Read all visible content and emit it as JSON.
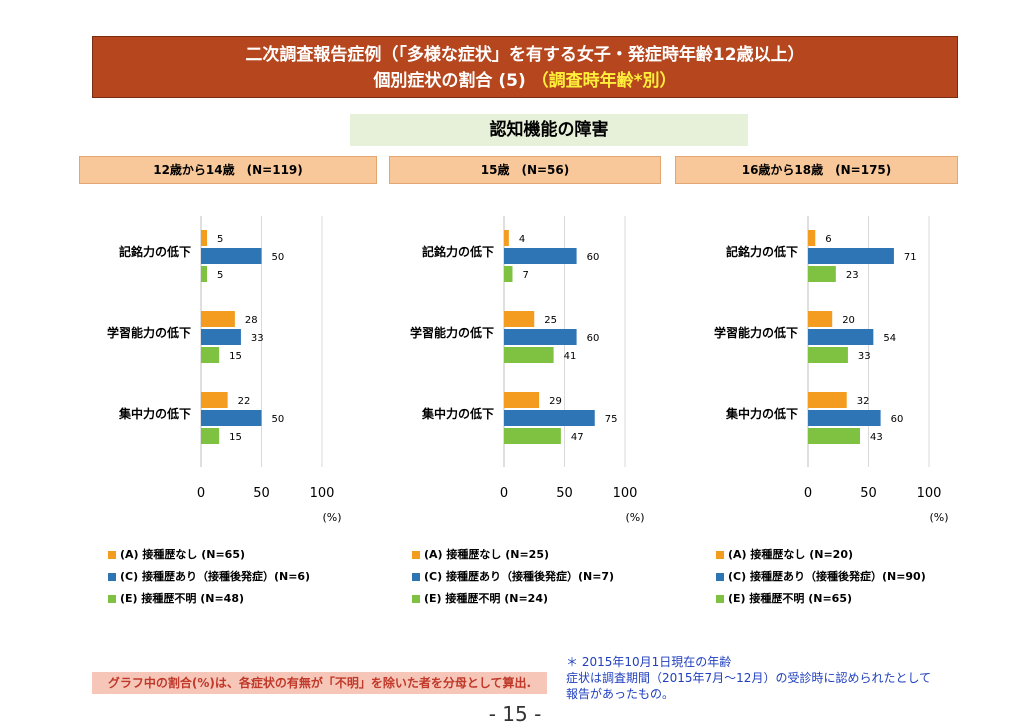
{
  "title_line1": "二次調査報告症例（「多様な症状」を有する女子・発症時年齢12歳以上）",
  "title_line2_main": "個別症状の割合 (5)",
  "title_line2_highlight": "（調査時年齢*別）",
  "section_title": "認知機能の障害",
  "colors": {
    "A": "#f39c1f",
    "C": "#2e75b6",
    "E": "#7fc241"
  },
  "chart_data": [
    {
      "type": "bar",
      "orientation": "horizontal",
      "group_label": "12歳から14歳　(N=119)",
      "categories": [
        "記銘力の低下",
        "学習能力の低下",
        "集中力の低下"
      ],
      "series": [
        {
          "name": "(A) 接種歴なし (N=65)",
          "key": "A",
          "values": [
            5,
            28,
            22
          ]
        },
        {
          "name": "(C) 接種歴あり（接種後発症）(N=6)",
          "key": "C",
          "values": [
            50,
            33,
            50
          ]
        },
        {
          "name": "(E) 接種歴不明 (N=48)",
          "key": "E",
          "values": [
            5,
            15,
            15
          ]
        }
      ],
      "xlim": [
        0,
        100
      ],
      "xticks": [
        "0",
        "50",
        "100"
      ],
      "xunit": "(%)",
      "grid": true
    },
    {
      "type": "bar",
      "orientation": "horizontal",
      "group_label": "15歳　(N=56)",
      "categories": [
        "記銘力の低下",
        "学習能力の低下",
        "集中力の低下"
      ],
      "series": [
        {
          "name": "(A) 接種歴なし (N=25)",
          "key": "A",
          "values": [
            4,
            25,
            29
          ]
        },
        {
          "name": "(C) 接種歴あり（接種後発症）(N=7)",
          "key": "C",
          "values": [
            60,
            60,
            75
          ]
        },
        {
          "name": "(E) 接種歴不明 (N=24)",
          "key": "E",
          "values": [
            7,
            41,
            47
          ]
        }
      ],
      "xlim": [
        0,
        100
      ],
      "xticks": [
        "0",
        "50",
        "100"
      ],
      "xunit": "(%)",
      "grid": true
    },
    {
      "type": "bar",
      "orientation": "horizontal",
      "group_label": "16歳から18歳　(N=175)",
      "categories": [
        "記銘力の低下",
        "学習能力の低下",
        "集中力の低下"
      ],
      "series": [
        {
          "name": "(A) 接種歴なし (N=20)",
          "key": "A",
          "values": [
            6,
            20,
            32
          ]
        },
        {
          "name": "(C) 接種歴あり（接種後発症）(N=90)",
          "key": "C",
          "values": [
            71,
            54,
            60
          ]
        },
        {
          "name": "(E) 接種歴不明 (N=65)",
          "key": "E",
          "values": [
            23,
            33,
            43
          ]
        }
      ],
      "xlim": [
        0,
        100
      ],
      "xticks": [
        "0",
        "50",
        "100"
      ],
      "xunit": "(%)",
      "grid": true
    }
  ],
  "note_left": "グラフ中の割合(%)は、各症状の有無が「不明」を除いた者を分母として算出.",
  "note_right": [
    "＊ 2015年10月1日現在の年齢",
    "症状は調査期間（2015年7月〜12月）の受診時に認められたとして",
    "報告があったもの。"
  ],
  "page_number": "- 15 -"
}
